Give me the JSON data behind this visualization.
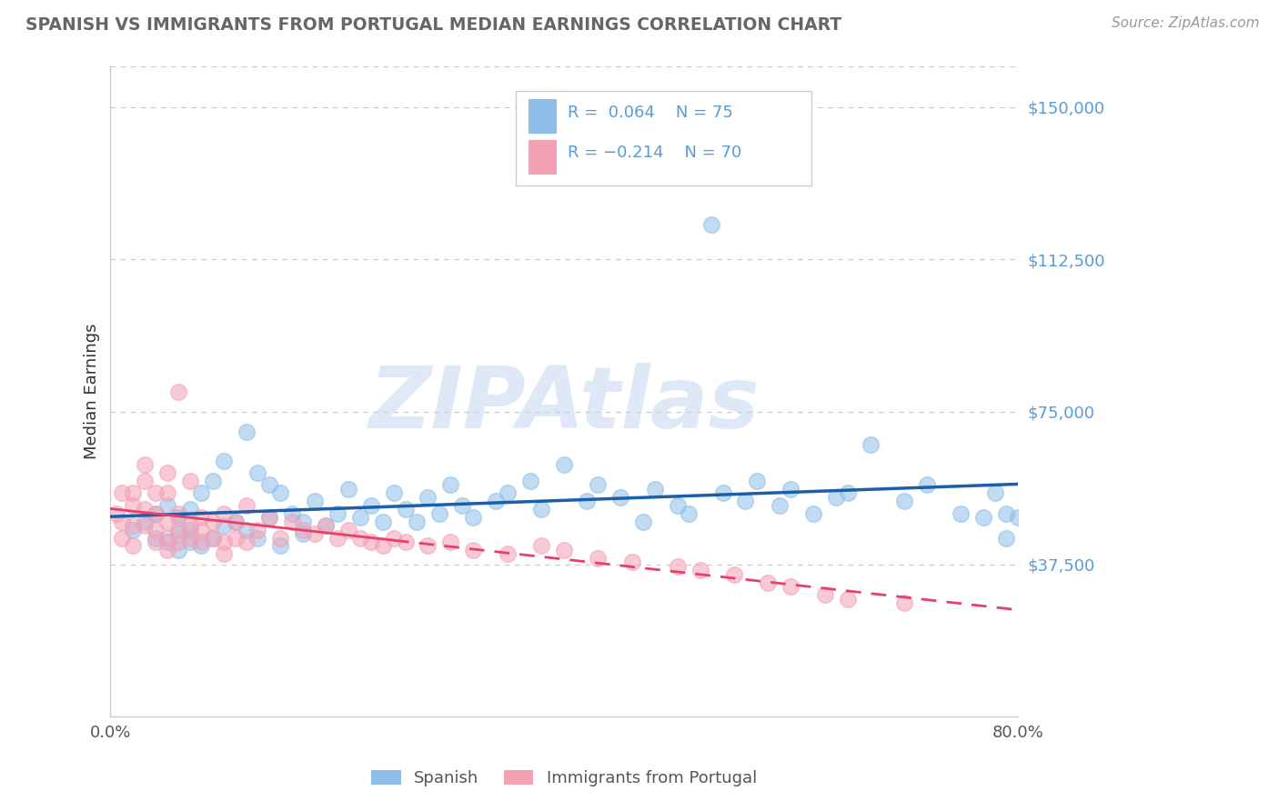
{
  "title": "SPANISH VS IMMIGRANTS FROM PORTUGAL MEDIAN EARNINGS CORRELATION CHART",
  "source": "Source: ZipAtlas.com",
  "ylabel": "Median Earnings",
  "yticks": [
    0,
    37500,
    75000,
    112500,
    150000
  ],
  "ytick_labels": [
    "",
    "$37,500",
    "$75,000",
    "$112,500",
    "$150,000"
  ],
  "ylim": [
    0,
    160000
  ],
  "xlim": [
    0.0,
    0.8
  ],
  "blue_color": "#8dbfe8",
  "pink_color": "#f4a0b5",
  "trend_blue_color": "#1a5fa8",
  "trend_pink_color": "#e8406a",
  "watermark": "ZIPAtlas",
  "watermark_color": "#c8daf0",
  "background_color": "#ffffff",
  "grid_color": "#c8c8c8",
  "title_color": "#666666",
  "ytick_color": "#5b9bd5",
  "xtick_color": "#555555",
  "ylabel_color": "#333333",
  "legend_r1": "R =  0.064",
  "legend_n1": "N = 75",
  "legend_r2": "R = −0.214",
  "legend_n2": "N = 70",
  "blue_scatter_x": [
    0.02,
    0.03,
    0.04,
    0.04,
    0.05,
    0.05,
    0.06,
    0.06,
    0.06,
    0.07,
    0.07,
    0.07,
    0.08,
    0.08,
    0.09,
    0.09,
    0.1,
    0.1,
    0.11,
    0.12,
    0.12,
    0.13,
    0.13,
    0.14,
    0.14,
    0.15,
    0.15,
    0.16,
    0.17,
    0.17,
    0.18,
    0.19,
    0.2,
    0.21,
    0.22,
    0.23,
    0.24,
    0.25,
    0.26,
    0.27,
    0.28,
    0.29,
    0.3,
    0.31,
    0.32,
    0.34,
    0.35,
    0.37,
    0.38,
    0.4,
    0.42,
    0.43,
    0.45,
    0.47,
    0.48,
    0.5,
    0.51,
    0.53,
    0.54,
    0.56,
    0.57,
    0.59,
    0.6,
    0.62,
    0.64,
    0.65,
    0.67,
    0.7,
    0.72,
    0.75,
    0.77,
    0.78,
    0.79,
    0.79,
    0.8
  ],
  "blue_scatter_y": [
    46000,
    48000,
    50000,
    44000,
    52000,
    43000,
    49000,
    45000,
    41000,
    51000,
    46000,
    43000,
    55000,
    42000,
    58000,
    44000,
    63000,
    47000,
    48000,
    70000,
    46000,
    60000,
    44000,
    57000,
    49000,
    55000,
    42000,
    50000,
    48000,
    45000,
    53000,
    47000,
    50000,
    56000,
    49000,
    52000,
    48000,
    55000,
    51000,
    48000,
    54000,
    50000,
    57000,
    52000,
    49000,
    53000,
    55000,
    58000,
    51000,
    62000,
    53000,
    57000,
    54000,
    48000,
    56000,
    52000,
    50000,
    121000,
    55000,
    53000,
    58000,
    52000,
    56000,
    50000,
    54000,
    55000,
    67000,
    53000,
    57000,
    50000,
    49000,
    55000,
    50000,
    44000,
    49000
  ],
  "pink_scatter_x": [
    0.005,
    0.01,
    0.01,
    0.01,
    0.02,
    0.02,
    0.02,
    0.02,
    0.03,
    0.03,
    0.03,
    0.03,
    0.04,
    0.04,
    0.04,
    0.04,
    0.05,
    0.05,
    0.05,
    0.05,
    0.05,
    0.06,
    0.06,
    0.06,
    0.06,
    0.07,
    0.07,
    0.07,
    0.08,
    0.08,
    0.08,
    0.09,
    0.09,
    0.1,
    0.1,
    0.1,
    0.11,
    0.11,
    0.12,
    0.12,
    0.13,
    0.14,
    0.15,
    0.16,
    0.17,
    0.18,
    0.19,
    0.2,
    0.21,
    0.22,
    0.23,
    0.24,
    0.25,
    0.26,
    0.28,
    0.3,
    0.32,
    0.35,
    0.38,
    0.4,
    0.43,
    0.46,
    0.5,
    0.52,
    0.55,
    0.58,
    0.6,
    0.63,
    0.65,
    0.7
  ],
  "pink_scatter_y": [
    50000,
    44000,
    55000,
    48000,
    52000,
    42000,
    47000,
    55000,
    51000,
    58000,
    47000,
    62000,
    50000,
    46000,
    43000,
    55000,
    48000,
    41000,
    55000,
    60000,
    44000,
    50000,
    46000,
    43000,
    80000,
    58000,
    47000,
    44000,
    49000,
    46000,
    43000,
    48000,
    44000,
    50000,
    43000,
    40000,
    48000,
    44000,
    52000,
    43000,
    46000,
    49000,
    44000,
    48000,
    46000,
    45000,
    47000,
    44000,
    46000,
    44000,
    43000,
    42000,
    44000,
    43000,
    42000,
    43000,
    41000,
    40000,
    42000,
    41000,
    39000,
    38000,
    37000,
    36000,
    35000,
    33000,
    32000,
    30000,
    29000,
    28000
  ]
}
